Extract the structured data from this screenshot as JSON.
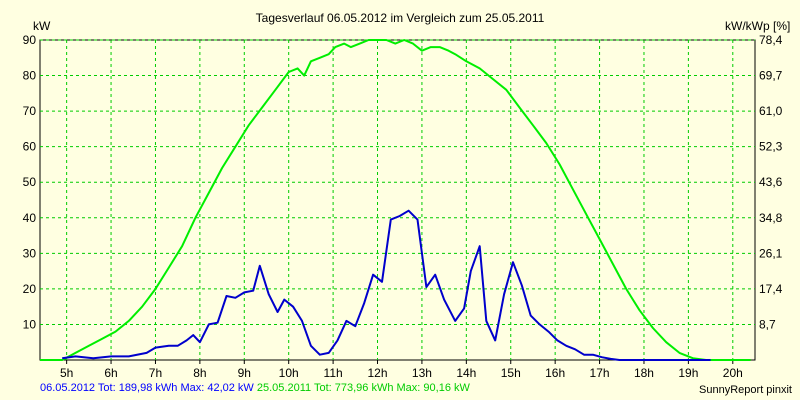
{
  "chart_data": {
    "type": "line",
    "title": "Tagesverlauf 06.05.2012 im Vergleich zum 25.05.2011",
    "ylabel_left": "kW",
    "ylabel_right": "kW/kWp [%]",
    "xlim": [
      4.4,
      20.5
    ],
    "ylim": [
      0,
      90
    ],
    "x_ticks": [
      5,
      6,
      7,
      8,
      9,
      10,
      11,
      12,
      13,
      14,
      15,
      16,
      17,
      18,
      19,
      20
    ],
    "x_tick_labels": [
      "5h",
      "6h",
      "7h",
      "8h",
      "9h",
      "10h",
      "11h",
      "12h",
      "13h",
      "14h",
      "15h",
      "16h",
      "17h",
      "18h",
      "19h",
      "20h"
    ],
    "y_ticks_left": [
      10,
      20,
      30,
      40,
      50,
      60,
      70,
      80,
      90
    ],
    "y_tick_labels_left": [
      "10",
      "20",
      "30",
      "40",
      "50",
      "60",
      "70",
      "80",
      "90"
    ],
    "y_tick_labels_right": [
      "8,7",
      "17,4",
      "26,1",
      "34,8",
      "43,6",
      "52,3",
      "61,0",
      "69,7",
      "78,4"
    ],
    "grid": true,
    "background_color": "#ffffe1",
    "series": [
      {
        "name": "06.05.2012",
        "color": "#0000cc",
        "x": [
          4.9,
          5.2,
          5.6,
          6.0,
          6.4,
          6.8,
          7.0,
          7.3,
          7.5,
          7.7,
          7.85,
          8.0,
          8.2,
          8.4,
          8.6,
          8.8,
          9.0,
          9.2,
          9.35,
          9.55,
          9.75,
          9.9,
          10.1,
          10.3,
          10.5,
          10.7,
          10.9,
          11.1,
          11.3,
          11.5,
          11.7,
          11.9,
          12.1,
          12.3,
          12.5,
          12.7,
          12.9,
          13.1,
          13.3,
          13.5,
          13.75,
          13.95,
          14.1,
          14.3,
          14.45,
          14.65,
          14.85,
          15.05,
          15.25,
          15.45,
          15.65,
          15.85,
          16.05,
          16.25,
          16.45,
          16.65,
          16.85,
          17.05,
          17.25,
          17.45,
          17.65,
          17.85,
          18.0,
          18.2,
          18.4,
          18.6,
          18.8,
          19.0,
          19.2,
          19.5
        ],
        "y": [
          0.5,
          1,
          0.5,
          1,
          1,
          2,
          3.5,
          4,
          4,
          5.5,
          7,
          5,
          10,
          10.5,
          18,
          17.5,
          19,
          19.5,
          26.5,
          18.5,
          13.5,
          17,
          15,
          11,
          4,
          1.5,
          2,
          5.5,
          11,
          9.5,
          16,
          24,
          22,
          39.5,
          40.5,
          42,
          39.5,
          20.5,
          24,
          17,
          11,
          14.5,
          25,
          32,
          11,
          5.5,
          18.5,
          27.5,
          21,
          12.5,
          10,
          8,
          5.5,
          4,
          3,
          1.5,
          1.5,
          0.8,
          0.3,
          0,
          0,
          0,
          0,
          0,
          0,
          0,
          0,
          0,
          0,
          0
        ]
      },
      {
        "name": "25.05.2011",
        "color": "#00ee00",
        "x": [
          4.4,
          4.9,
          5.2,
          5.5,
          5.8,
          6.1,
          6.4,
          6.7,
          7.0,
          7.3,
          7.6,
          7.9,
          8.2,
          8.5,
          8.8,
          9.1,
          9.4,
          9.7,
          10.0,
          10.2,
          10.35,
          10.5,
          10.7,
          10.9,
          11.05,
          11.25,
          11.4,
          11.6,
          11.8,
          12.0,
          12.2,
          12.4,
          12.6,
          12.8,
          13.0,
          13.2,
          13.4,
          13.6,
          13.75,
          14.0,
          14.3,
          14.6,
          14.9,
          15.2,
          15.5,
          15.8,
          16.1,
          16.4,
          16.7,
          17.0,
          17.3,
          17.6,
          17.9,
          18.2,
          18.5,
          18.8,
          19.1,
          19.4,
          19.6,
          19.8,
          20.0,
          20.2,
          20.4
        ],
        "y": [
          0,
          0,
          2,
          4,
          6,
          8,
          11,
          15,
          20,
          26,
          32,
          40,
          47,
          54,
          60,
          66,
          71,
          76,
          81,
          82,
          80,
          84,
          85,
          86,
          88,
          89,
          88,
          89,
          90,
          90,
          90,
          89,
          90,
          89,
          87,
          88,
          88,
          87,
          86,
          84,
          82,
          79,
          76,
          71,
          66,
          61,
          55,
          48,
          41,
          34,
          27,
          20,
          14,
          9,
          5,
          2,
          0.5,
          0,
          0,
          0,
          0,
          0,
          0
        ]
      }
    ],
    "legend": {
      "series1_text": "06.05.2012 Tot: 189,98 kWh Max: 42,02 kW",
      "series2_text": "25.05.2011 Tot: 773,96 kWh Max: 90,16 kW"
    },
    "credit": "SunnyReport pinxit"
  }
}
